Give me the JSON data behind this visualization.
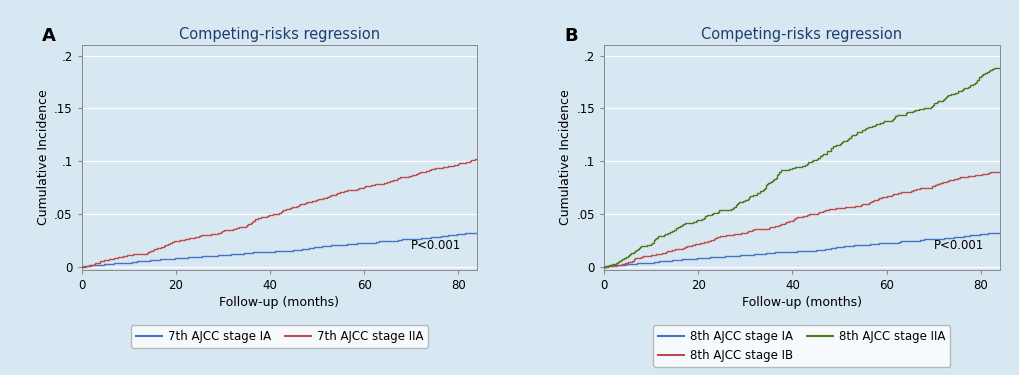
{
  "title": "Competing-risks regression",
  "xlabel": "Follow-up (months)",
  "ylabel": "Cumulative Incidence",
  "xlim": [
    0,
    84
  ],
  "ylim": [
    -0.003,
    0.21
  ],
  "yticks": [
    0,
    0.05,
    0.1,
    0.15,
    0.2
  ],
  "ytick_labels": [
    "0",
    ".05",
    ".1",
    ".15",
    ".2"
  ],
  "xticks": [
    0,
    20,
    40,
    60,
    80
  ],
  "bg_color": "#d8e8f3",
  "plot_bg_color": "#d8e8f3",
  "grid_color": "#ffffff",
  "panel_A": {
    "label": "A",
    "lines": [
      {
        "label": "7th AJCC stage IA",
        "color": "#4472c4",
        "end_value": 0.032,
        "n_steps": 300,
        "seed": 1
      },
      {
        "label": "7th AJCC stage IIA",
        "color": "#be4b48",
        "end_value": 0.102,
        "n_steps": 300,
        "seed": 2
      }
    ],
    "pvalue": "P<0.001"
  },
  "panel_B": {
    "label": "B",
    "lines": [
      {
        "label": "8th AJCC stage IA",
        "color": "#4472c4",
        "end_value": 0.032,
        "n_steps": 300,
        "seed": 1
      },
      {
        "label": "8th AJCC stage IB",
        "color": "#be4b48",
        "end_value": 0.09,
        "n_steps": 300,
        "seed": 3
      },
      {
        "label": "8th AJCC stage IIA",
        "color": "#4a7a19",
        "end_value": 0.188,
        "n_steps": 350,
        "seed": 4
      }
    ],
    "pvalue": "P<0.001"
  }
}
